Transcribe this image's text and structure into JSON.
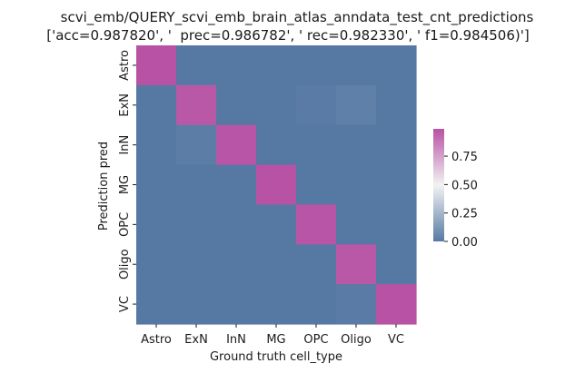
{
  "chart_data": {
    "type": "heatmap",
    "title_lines": [
      "scvi_emb/QUERY_scvi_emb_brain_atlas_anndata_test_cnt_predictions",
      "['acc=0.987820', '  prec=0.986782', ' rec=0.982330', ' f1=0.984506)']"
    ],
    "xlabel": "Ground truth cell_type",
    "ylabel": "Prediction pred",
    "x_categories": [
      "Astro",
      "ExN",
      "InN",
      "MG",
      "OPC",
      "Oligo",
      "VC"
    ],
    "y_categories": [
      "Astro",
      "ExN",
      "InN",
      "MG",
      "OPC",
      "Oligo",
      "VC"
    ],
    "values": [
      [
        0.99,
        0.0,
        0.0,
        0.0,
        0.0,
        0.0,
        0.0
      ],
      [
        0.0,
        0.97,
        0.0,
        0.0,
        0.01,
        0.03,
        0.0
      ],
      [
        0.0,
        0.02,
        0.98,
        0.0,
        0.0,
        0.0,
        0.0
      ],
      [
        0.0,
        0.0,
        0.0,
        0.99,
        0.0,
        0.0,
        0.0
      ],
      [
        0.0,
        0.0,
        0.0,
        0.0,
        0.98,
        0.0,
        0.0
      ],
      [
        0.0,
        0.0,
        0.0,
        0.0,
        0.0,
        0.97,
        0.0
      ],
      [
        0.0,
        0.0,
        0.0,
        0.0,
        0.0,
        0.01,
        0.99
      ]
    ],
    "colorbar": {
      "min": 0.0,
      "max": 0.99,
      "ticks": [
        0.0,
        0.25,
        0.5,
        0.75
      ],
      "tick_labels": [
        "0.00",
        "0.25",
        "0.50",
        "0.75"
      ]
    },
    "colormap": [
      "#5679a3",
      "#f2f2f2",
      "#b852a5"
    ]
  }
}
